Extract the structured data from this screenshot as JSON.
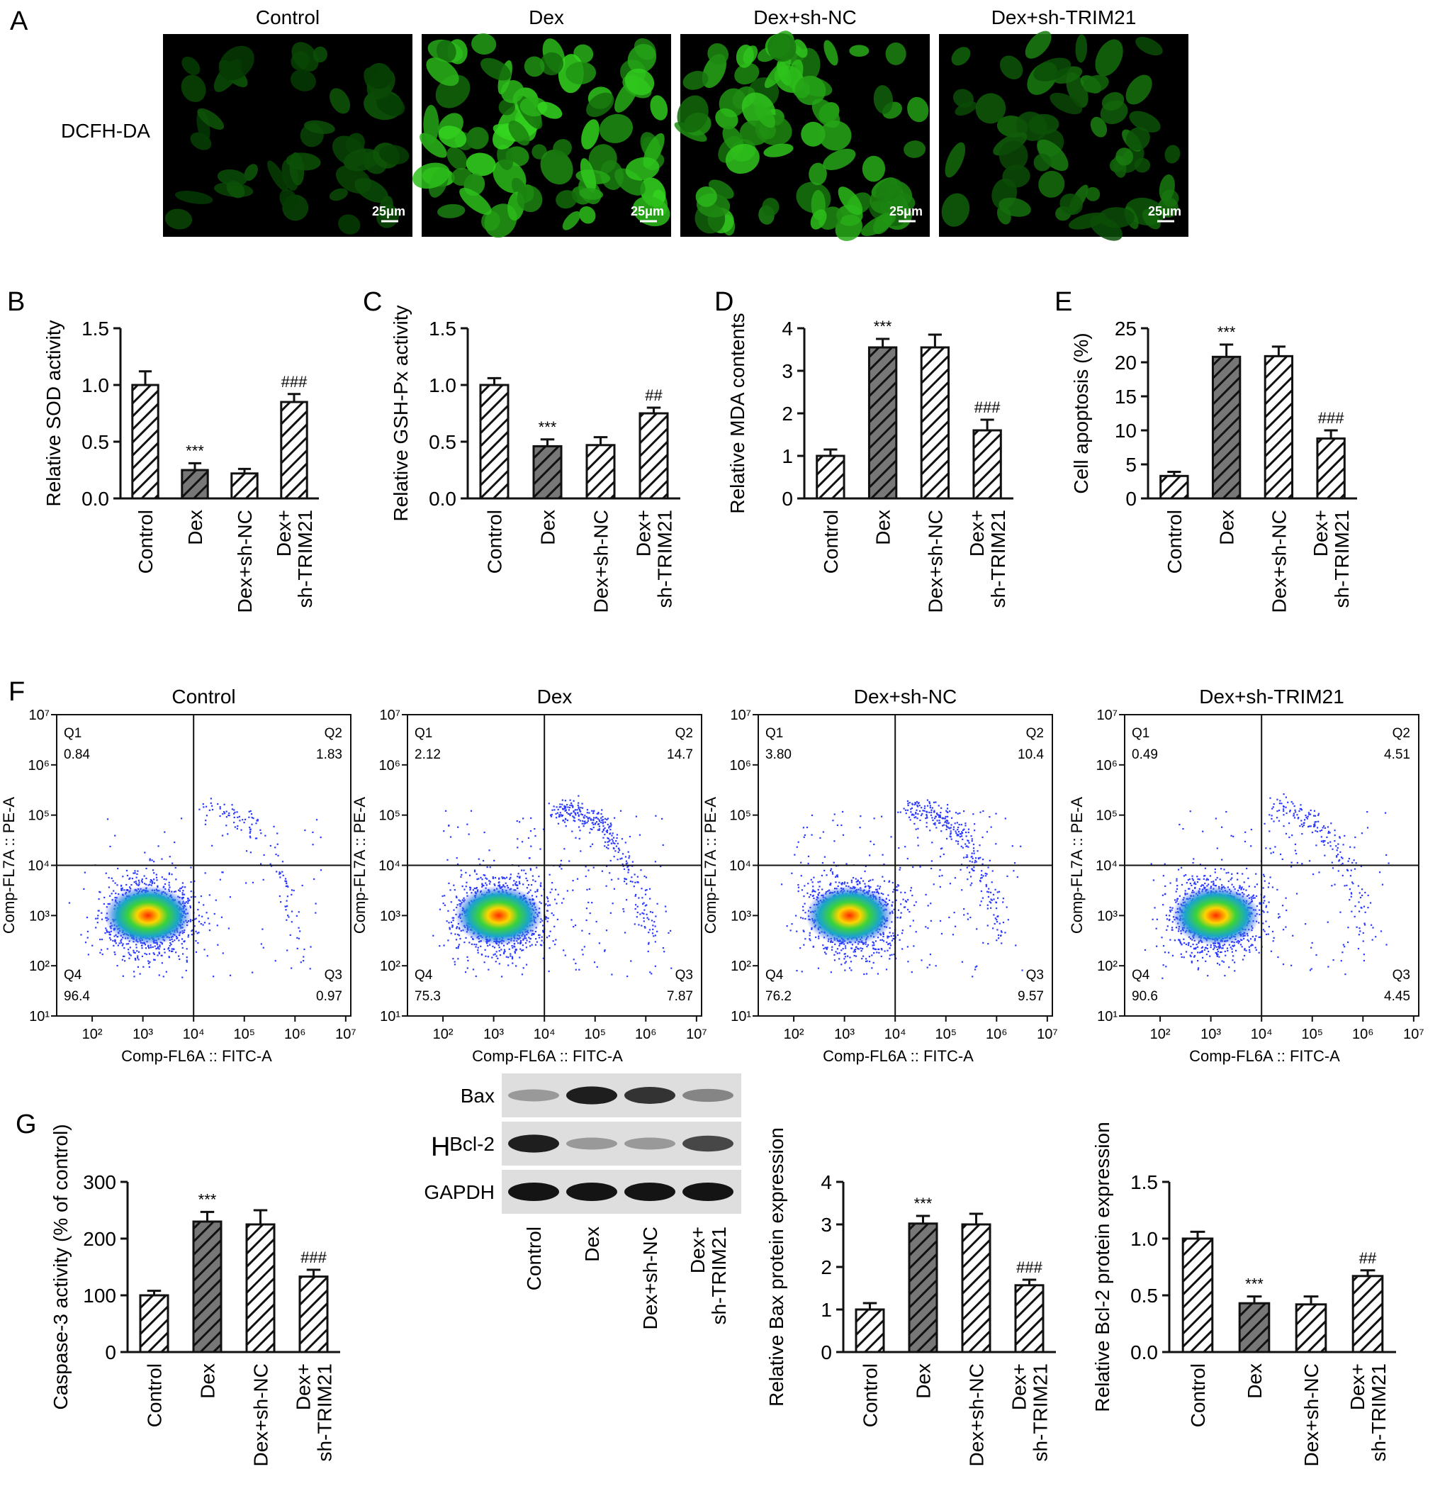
{
  "colors": {
    "hatch_light": "#ffffff",
    "hatch_dark": "#777777",
    "fluor_green": "#2fd43a",
    "blot_band": "#1a1a1a"
  },
  "panels": {
    "A": "A",
    "B": "B",
    "C": "C",
    "D": "D",
    "E": "E",
    "F": "F",
    "G": "G",
    "H": "H"
  },
  "microscopy": {
    "row_label": "DCFH-DA",
    "scale_bar": "25μm",
    "images": [
      {
        "title": "Control",
        "intensity": 0.25
      },
      {
        "title": "Dex",
        "intensity": 0.9
      },
      {
        "title": "Dex+sh-NC",
        "intensity": 0.8
      },
      {
        "title": "Dex+sh-TRIM21",
        "intensity": 0.45
      }
    ]
  },
  "flow": {
    "xlabel": "Comp-FL6A :: FITC-A",
    "ylabel": "Comp-FL7A :: PE-A",
    "x_ticks": [
      "10²",
      "10³",
      "10⁴",
      "10⁵",
      "10⁶",
      "10⁷"
    ],
    "y_ticks": [
      "10⁷",
      "10⁶",
      "10⁵",
      "10⁴",
      "10³",
      "10²",
      "10¹"
    ],
    "x_tick_exp": [
      2,
      3,
      4,
      5,
      6,
      7
    ],
    "y_tick_exp": [
      7,
      6,
      5,
      4,
      3,
      2,
      1
    ],
    "gate": {
      "x_log": 4,
      "y_log": 4
    },
    "plots": [
      {
        "title": "Control",
        "q1": "0.84",
        "q2": "1.83",
        "q3": "0.97",
        "q4": "96.4"
      },
      {
        "title": "Dex",
        "q1": "2.12",
        "q2": "14.7",
        "q3": "7.87",
        "q4": "75.3"
      },
      {
        "title": "Dex+sh-NC",
        "q1": "3.80",
        "q2": "10.4",
        "q3": "9.57",
        "q4": "76.2"
      },
      {
        "title": "Dex+sh-TRIM21",
        "q1": "0.49",
        "q2": "4.51",
        "q3": "4.45",
        "q4": "90.6"
      }
    ],
    "quadrant_labels": {
      "q1": "Q1",
      "q2": "Q2",
      "q3": "Q3",
      "q4": "Q4"
    }
  },
  "western": {
    "rows": [
      "Bax",
      "Bcl-2",
      "GAPDH"
    ],
    "lanes": [
      "Control",
      "Dex",
      "Dex+sh-NC",
      "Dex+\nsh-TRIM21"
    ],
    "band_intensity": [
      [
        0.35,
        0.95,
        0.85,
        0.45
      ],
      [
        0.95,
        0.35,
        0.35,
        0.75
      ],
      [
        1.0,
        1.0,
        1.0,
        1.0
      ]
    ]
  },
  "chart_data": [
    {
      "id": "B",
      "type": "bar",
      "categories": [
        "Control",
        "Dex",
        "Dex+sh-NC",
        "Dex+\nsh-TRIM21"
      ],
      "values": [
        1.0,
        0.25,
        0.22,
        0.85
      ],
      "errors": [
        0.12,
        0.06,
        0.04,
        0.07
      ],
      "annotations": [
        "",
        "***",
        "",
        "###"
      ],
      "ylabel": "Relative SOD activity",
      "ylim": [
        0,
        1.5
      ],
      "yticks": [
        0.0,
        0.5,
        1.0,
        1.5
      ],
      "ytick_labels": [
        "0.0",
        "0.5",
        "1.0",
        "1.5"
      ]
    },
    {
      "id": "C",
      "type": "bar",
      "categories": [
        "Control",
        "Dex",
        "Dex+sh-NC",
        "Dex+\nsh-TRIM21"
      ],
      "values": [
        1.0,
        0.46,
        0.47,
        0.75
      ],
      "errors": [
        0.06,
        0.06,
        0.07,
        0.05
      ],
      "annotations": [
        "",
        "***",
        "",
        "##"
      ],
      "ylabel": "Relative GSH-Px activity",
      "ylim": [
        0,
        1.5
      ],
      "yticks": [
        0.0,
        0.5,
        1.0,
        1.5
      ],
      "ytick_labels": [
        "0.0",
        "0.5",
        "1.0",
        "1.5"
      ]
    },
    {
      "id": "D",
      "type": "bar",
      "categories": [
        "Control",
        "Dex",
        "Dex+sh-NC",
        "Dex+\nsh-TRIM21"
      ],
      "values": [
        1.0,
        3.55,
        3.55,
        1.6
      ],
      "errors": [
        0.15,
        0.2,
        0.3,
        0.25
      ],
      "annotations": [
        "",
        "***",
        "",
        "###"
      ],
      "ylabel": "Relative MDA contents",
      "ylim": [
        0,
        4
      ],
      "yticks": [
        0,
        1,
        2,
        3,
        4
      ],
      "ytick_labels": [
        "0",
        "1",
        "2",
        "3",
        "4"
      ]
    },
    {
      "id": "E",
      "type": "bar",
      "categories": [
        "Control",
        "Dex",
        "Dex+sh-NC",
        "Dex+\nsh-TRIM21"
      ],
      "values": [
        3.3,
        20.8,
        20.9,
        8.8
      ],
      "errors": [
        0.6,
        1.8,
        1.4,
        1.2
      ],
      "annotations": [
        "",
        "***",
        "",
        "###"
      ],
      "ylabel": "Cell apoptosis (%)",
      "ylim": [
        0,
        25
      ],
      "yticks": [
        0,
        5,
        10,
        15,
        20,
        25
      ],
      "ytick_labels": [
        "0",
        "5",
        "10",
        "15",
        "20",
        "25"
      ]
    },
    {
      "id": "G",
      "type": "bar",
      "categories": [
        "Control",
        "Dex",
        "Dex+sh-NC",
        "Dex+\nsh-TRIM21"
      ],
      "values": [
        100,
        230,
        225,
        133
      ],
      "errors": [
        8,
        17,
        25,
        12
      ],
      "annotations": [
        "",
        "***",
        "",
        "###"
      ],
      "ylabel": "Caspase-3 activity (% of control)",
      "ylim": [
        0,
        300
      ],
      "yticks": [
        0,
        100,
        200,
        300
      ],
      "ytick_labels": [
        "0",
        "100",
        "200",
        "300"
      ]
    },
    {
      "id": "H1",
      "type": "bar",
      "categories": [
        "Control",
        "Dex",
        "Dex+sh-NC",
        "Dex+\nsh-TRIM21"
      ],
      "values": [
        1.0,
        3.02,
        3.0,
        1.57
      ],
      "errors": [
        0.15,
        0.18,
        0.25,
        0.13
      ],
      "annotations": [
        "",
        "***",
        "",
        "###"
      ],
      "ylabel": "Relative Bax protein expression",
      "ylim": [
        0,
        4
      ],
      "yticks": [
        0,
        1,
        2,
        3,
        4
      ],
      "ytick_labels": [
        "0",
        "1",
        "2",
        "3",
        "4"
      ]
    },
    {
      "id": "H2",
      "type": "bar",
      "categories": [
        "Control",
        "Dex",
        "Dex+sh-NC",
        "Dex+\nsh-TRIM21"
      ],
      "values": [
        1.0,
        0.43,
        0.42,
        0.67
      ],
      "errors": [
        0.06,
        0.06,
        0.07,
        0.05
      ],
      "annotations": [
        "",
        "***",
        "",
        "##"
      ],
      "ylabel": "Relative Bcl-2 protein expression",
      "ylim": [
        0,
        1.5
      ],
      "yticks": [
        0.0,
        0.5,
        1.0,
        1.5
      ],
      "ytick_labels": [
        "0.0",
        "0.5",
        "1.0",
        "1.5"
      ]
    }
  ]
}
